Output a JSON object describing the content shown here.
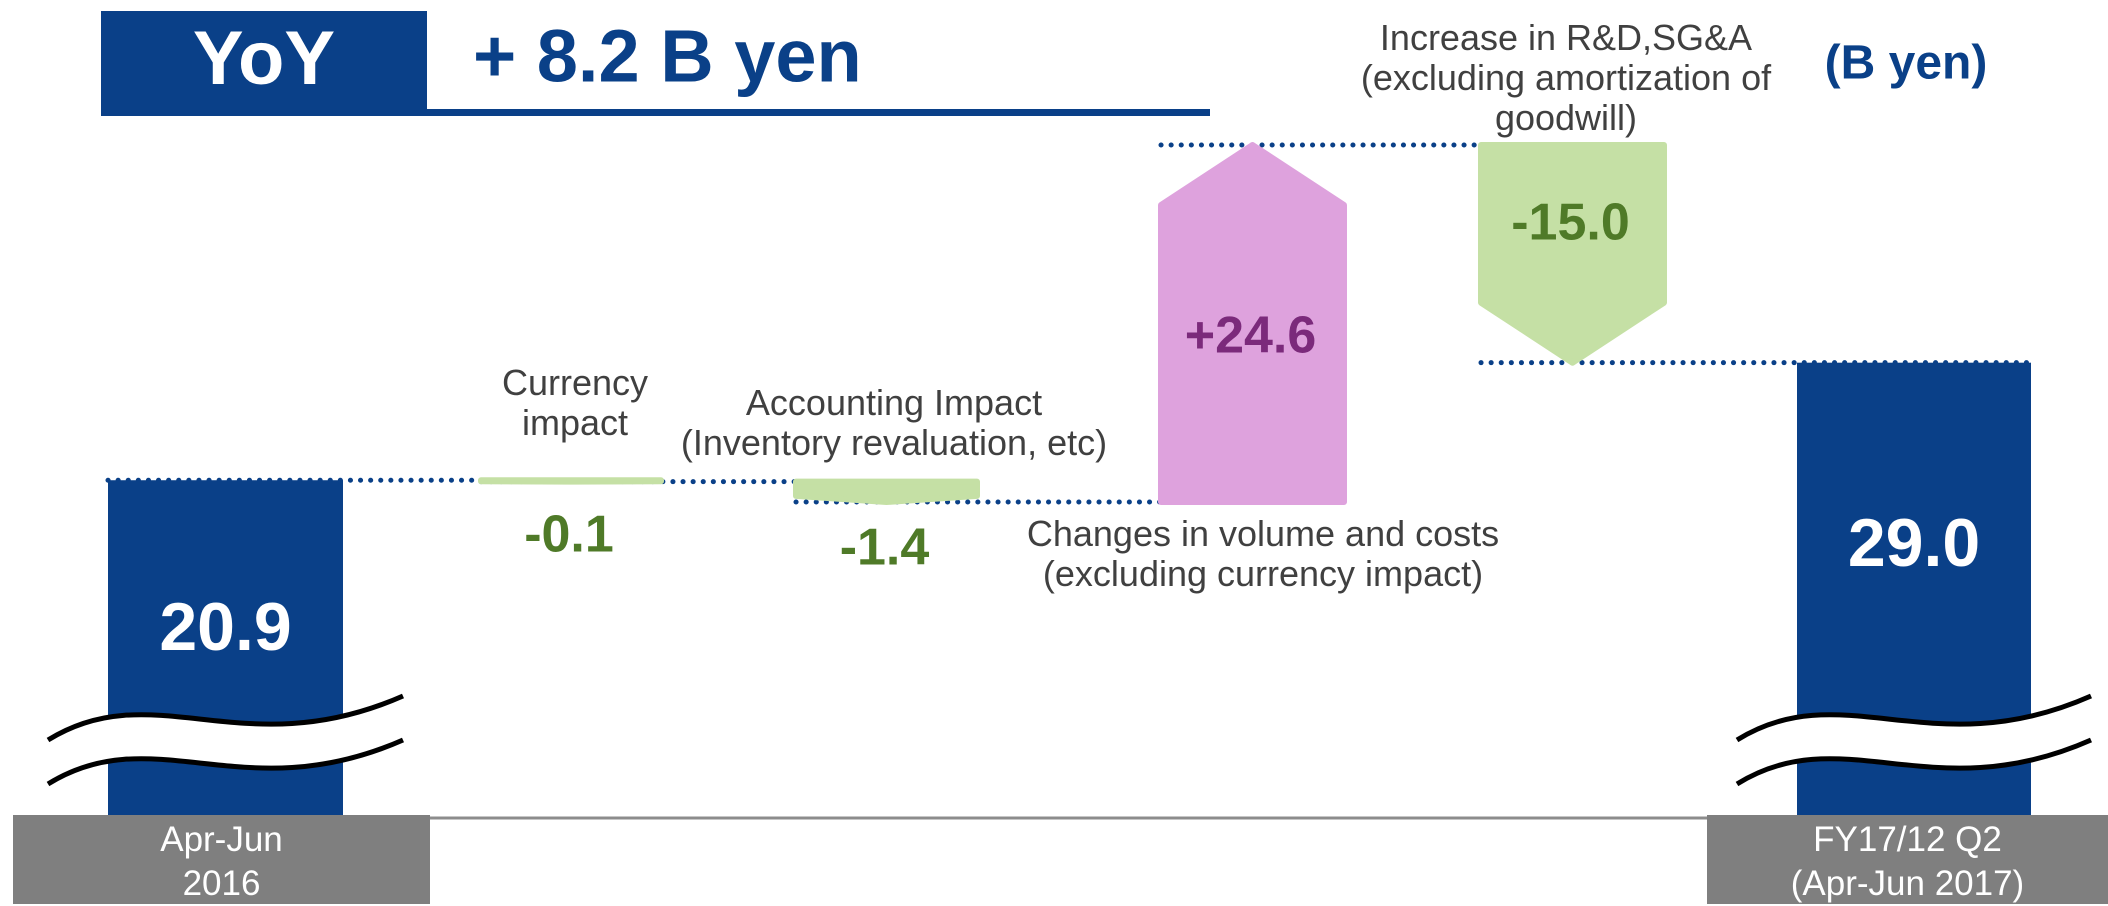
{
  "chart_data": {
    "type": "waterfall",
    "title": "YoY",
    "subtitle": "+ 8.2 B yen",
    "unit": "(B yen)",
    "categories": [
      "Apr-Jun\n2016",
      "Currency\nimpact",
      "Accounting Impact\n(Inventory revaluation, etc)",
      "Changes in volume and costs\n(excluding currency impact)",
      "Increase in R&D,SG&A\n(excluding amortization of\ngoodwill)",
      "FY17/12 Q2\n(Apr-Jun 2017)"
    ],
    "values": [
      20.9,
      -0.1,
      -1.4,
      24.6,
      -15.0,
      29.0
    ],
    "value_labels": [
      "20.9",
      "-0.1",
      "-1.4",
      "+24.6",
      "-15.0",
      "29.0"
    ],
    "totals": [
      true,
      false,
      false,
      false,
      false,
      true
    ],
    "colors": {
      "total": "#0a4088",
      "increase": "#dea2dd",
      "decrease": "#c5e0a5",
      "increase_label": "#7b2a7b",
      "decrease_label": "#4f7a28",
      "connector": "#0a4088"
    }
  }
}
